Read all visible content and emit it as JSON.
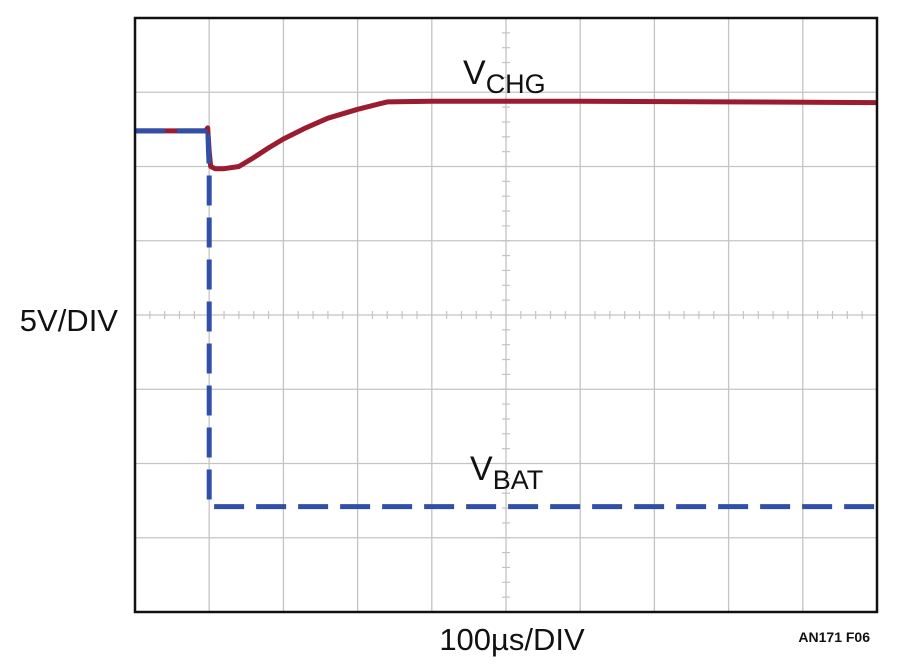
{
  "chart_data": {
    "type": "line",
    "xlabel": "100µs/DIV",
    "ylabel": "5V/DIV",
    "figure_id": "AN171 F06",
    "x_divisions": 10,
    "y_divisions": 8,
    "grid": true,
    "xlim": [
      0,
      10
    ],
    "ylim": [
      0,
      8
    ],
    "series": [
      {
        "name": "CHG",
        "name_prefix": "V",
        "color": "#9b1b30",
        "style": "solid",
        "x": [
          0,
          0.95,
          0.98,
          1.0,
          1.02,
          1.08,
          1.2,
          1.4,
          1.6,
          1.8,
          2.0,
          2.3,
          2.6,
          3.0,
          3.4,
          4.0,
          5.0,
          6.0,
          8.0,
          10.0
        ],
        "y": [
          6.48,
          6.48,
          6.52,
          6.2,
          6.0,
          5.97,
          5.97,
          6.0,
          6.12,
          6.25,
          6.37,
          6.52,
          6.65,
          6.77,
          6.87,
          6.88,
          6.88,
          6.88,
          6.87,
          6.86
        ]
      },
      {
        "name": "BAT",
        "name_prefix": "V",
        "color": "#2f4fa8",
        "style": "dashed",
        "x": [
          0,
          0.95,
          0.98,
          0.99,
          1.0,
          1.0,
          10.0
        ],
        "y": [
          6.48,
          6.48,
          6.55,
          6.2,
          6.0,
          1.42,
          1.42
        ]
      }
    ]
  }
}
